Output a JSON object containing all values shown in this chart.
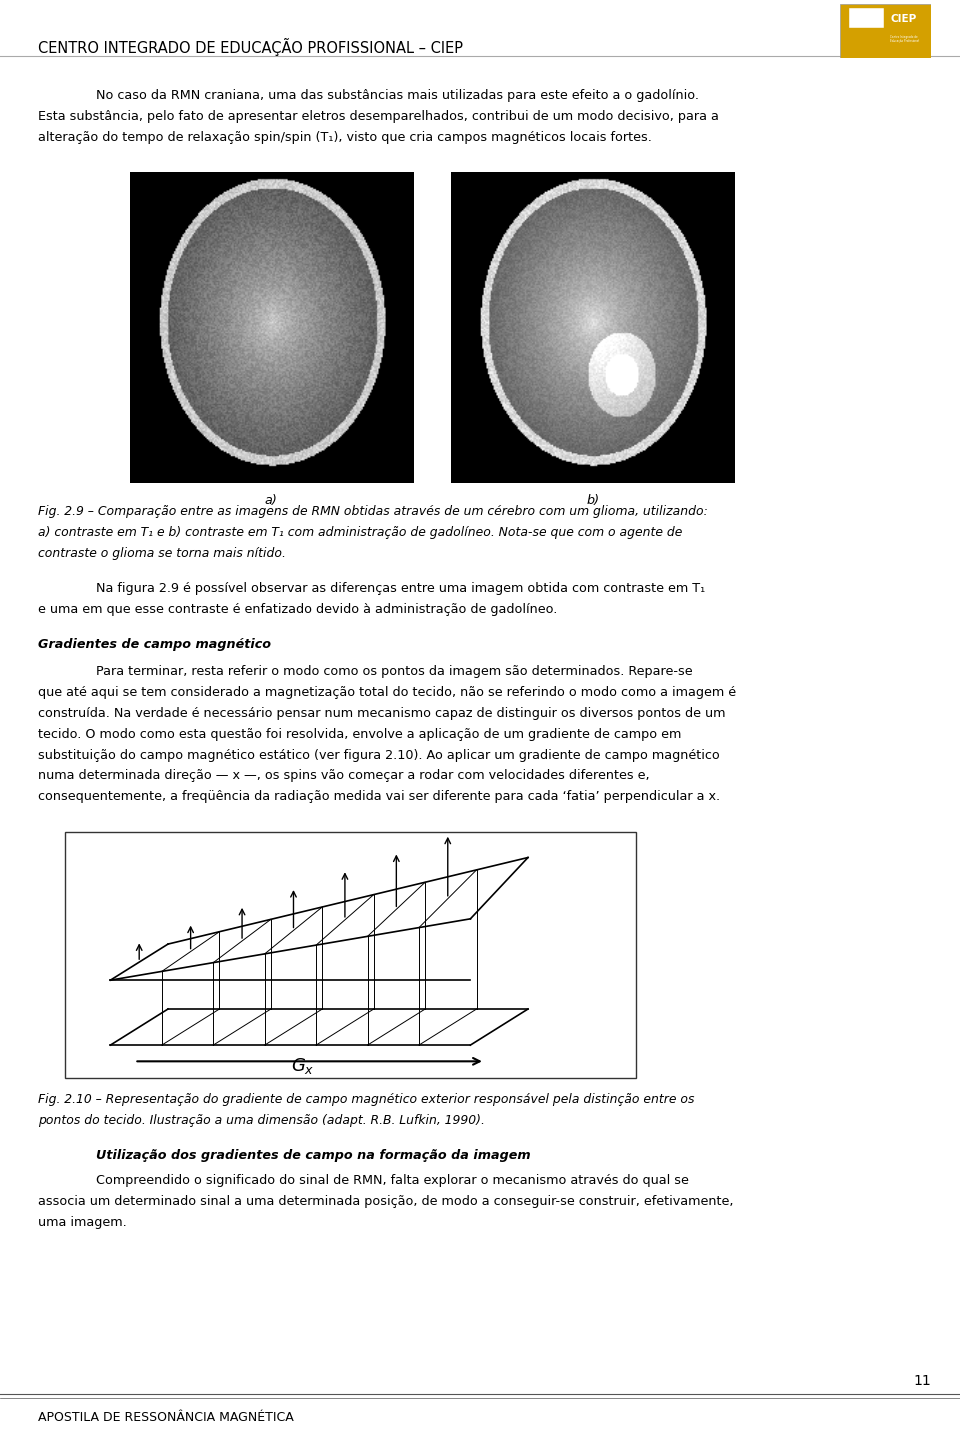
{
  "page_width": 9.6,
  "page_height": 14.43,
  "dpi": 100,
  "bg_color": "#ffffff",
  "header_text": "CENTRO INTEGRADO DE EDUCAÇÃO PROFISSIONAL – CIEP",
  "header_fontsize": 10.5,
  "header_color": "#000000",
  "footer_text": "APOSTILA DE RESSONÂNCIA MAGNÉTICA",
  "footer_page": "11",
  "footer_fontsize": 9,
  "body_fontsize": 9.2,
  "body_color": "#000000",
  "para1_indent": "No caso da RMN craniana, uma das substâncias mais utilizadas para este efeito a o gadolínio.",
  "para1_rest": "Esta substância, pelo fato de apresentar eletros desemparelhados, contribui de um modo decisivo, para a\nalteração do tempo de relaxação spin/spin (T₁), visto que cria campos magnéticos locais fortes.",
  "fig_caption_a": "a)",
  "fig_caption_b": "b)",
  "fig29_line1": "Fig. 2.9 – Comparação entre as imagens de RMN obtidas através de um cérebro com um glioma, utilizando:",
  "fig29_line2": "a) contraste em T₁ e b) contraste em T₁ com administração de gadolíneo. Nota-se que com o agente de",
  "fig29_line3": "contraste o glioma se torna mais nítido.",
  "para2_indent": "Na figura 2.9 é possível observar as diferenças entre uma imagem obtida com contraste em T₁",
  "para2_rest": "e uma em que esse contraste é enfatizado devido à administração de gadolíneo.",
  "section_title": "Gradientes de campo magnético",
  "para3_indent": "Para terminar, resta referir o modo como os pontos da imagem são determinados. Repare-se",
  "para3_rest": "que até aqui se tem considerado a magnetização total do tecido, não se referindo o modo como a imagem é\nconstruída. Na verdade é necessário pensar num mecanismo capaz de distinguir os diversos pontos de um\ntecido. O modo como esta questão foi resolvida, envolve a aplicação de um gradiente de campo em\nsubstituição do campo magnético estático (ver figura 2.10). Ao aplicar um gradiente de campo magnético\nnuma determinada direção — x —, os spins vão começar a rodar com velocidades diferentes e,\nconsequentemente, a freqüência da radiação medida vai ser diferente para cada ‘fatia’ perpendicular a x.",
  "fig210_line1": "Fig. 2.10 – Representação do gradiente de campo magnético exterior responsável pela distinção entre os",
  "fig210_line2": "pontos do tecido. Ilustração a uma dimensão (adapt. R.B. Lufkin, 1990).",
  "subsection_title": "Utilização dos gradientes de campo na formação da imagem",
  "para4_indent": "Compreendido o significado do sinal de RMN, falta explorar o mecanismo através do qual se",
  "para4_rest": "associa um determinado sinal a uma determinada posição, de modo a conseguir-se construir, efetivamente,\numa imagem."
}
